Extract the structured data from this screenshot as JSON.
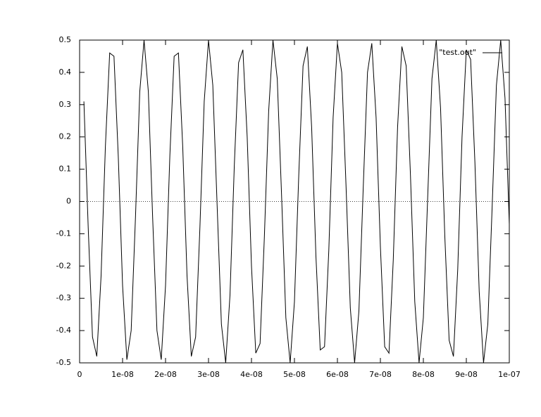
{
  "chart_data": {
    "type": "line",
    "x": [
      1e-09,
      2e-09,
      3e-09,
      4e-09,
      5e-09,
      6e-09,
      7e-09,
      8e-09,
      9e-09,
      1e-08,
      1.1e-08,
      1.2e-08,
      1.3e-08,
      1.4e-08,
      1.5e-08,
      1.6e-08,
      1.7e-08,
      1.8e-08,
      1.9e-08,
      2e-08,
      2.1e-08,
      2.2e-08,
      2.3e-08,
      2.4e-08,
      2.5e-08,
      2.6e-08,
      2.7e-08,
      2.8e-08,
      2.9e-08,
      3e-08,
      3.1e-08,
      3.2e-08,
      3.3e-08,
      3.4e-08,
      3.5e-08,
      3.6e-08,
      3.7e-08,
      3.8e-08,
      3.9e-08,
      4e-08,
      4.1e-08,
      4.2e-08,
      4.3e-08,
      4.4e-08,
      4.5e-08,
      4.6e-08,
      4.7e-08,
      4.8e-08,
      4.9e-08,
      5e-08,
      5.1e-08,
      5.2e-08,
      5.3e-08,
      5.4e-08,
      5.5e-08,
      5.6e-08,
      5.7e-08,
      5.8e-08,
      5.9e-08,
      6e-08,
      6.1e-08,
      6.2e-08,
      6.3e-08,
      6.4e-08,
      6.5e-08,
      6.6e-08,
      6.7e-08,
      6.8e-08,
      6.9e-08,
      7e-08,
      7.1e-08,
      7.2e-08,
      7.3e-08,
      7.4e-08,
      7.5e-08,
      7.6e-08,
      7.7e-08,
      7.8e-08,
      7.9e-08,
      8e-08,
      8.1e-08,
      8.2e-08,
      8.3e-08,
      8.4e-08,
      8.5e-08,
      8.6e-08,
      8.7e-08,
      8.8e-08,
      8.9e-08,
      9e-08,
      9.1e-08,
      9.2e-08,
      9.3e-08,
      9.4e-08,
      9.5e-08,
      9.6e-08,
      9.7e-08,
      9.8e-08,
      9.9e-08,
      1e-07
    ],
    "series": [
      {
        "name": "\"test.out\"",
        "color": "#000000",
        "values": [
          0.31,
          -0.08,
          -0.42,
          -0.48,
          -0.23,
          0.17,
          0.46,
          0.45,
          0.14,
          -0.26,
          -0.49,
          -0.4,
          -0.05,
          0.34,
          0.5,
          0.34,
          -0.05,
          -0.4,
          -0.49,
          -0.26,
          0.14,
          0.45,
          0.46,
          0.17,
          -0.23,
          -0.48,
          -0.42,
          -0.08,
          0.31,
          0.5,
          0.36,
          -0.01,
          -0.38,
          -0.5,
          -0.29,
          0.11,
          0.43,
          0.47,
          0.2,
          -0.2,
          -0.47,
          -0.44,
          -0.11,
          0.28,
          0.5,
          0.38,
          0.02,
          -0.36,
          -0.5,
          -0.31,
          0.08,
          0.42,
          0.48,
          0.23,
          -0.17,
          -0.46,
          -0.45,
          -0.15,
          0.26,
          0.49,
          0.4,
          0.05,
          -0.33,
          -0.5,
          -0.34,
          0.04,
          0.4,
          0.49,
          0.26,
          -0.14,
          -0.45,
          -0.47,
          -0.18,
          0.23,
          0.48,
          0.42,
          0.08,
          -0.31,
          -0.5,
          -0.36,
          0.01,
          0.38,
          0.5,
          0.29,
          -0.11,
          -0.43,
          -0.48,
          -0.21,
          0.2,
          0.47,
          0.44,
          0.12,
          -0.28,
          -0.5,
          -0.38,
          -0.02,
          0.36,
          0.5,
          0.32,
          -0.07
        ]
      }
    ],
    "xlim": [
      0,
      1e-07
    ],
    "xticks": [
      0,
      {
        "value": 1e-08,
        "label": "1e-08"
      },
      {
        "value": 2e-08,
        "label": "2e-08"
      },
      {
        "value": 3e-08,
        "label": "3e-08"
      },
      {
        "value": 4e-08,
        "label": "4e-08"
      },
      {
        "value": 5e-08,
        "label": "5e-08"
      },
      {
        "value": 6e-08,
        "label": "6e-08"
      },
      {
        "value": 7e-08,
        "label": "7e-08"
      },
      {
        "value": 8e-08,
        "label": "8e-08"
      },
      {
        "value": 9e-08,
        "label": "9e-08"
      },
      {
        "value": 1e-07,
        "label": "1e-07"
      }
    ],
    "ylim": [
      -0.5,
      0.5
    ],
    "yticks": [
      -0.5,
      -0.4,
      -0.3,
      -0.2,
      -0.1,
      0,
      0.1,
      0.2,
      0.3,
      0.4,
      0.5
    ],
    "zeroaxis": true,
    "grid": false,
    "legend": "top-right"
  }
}
